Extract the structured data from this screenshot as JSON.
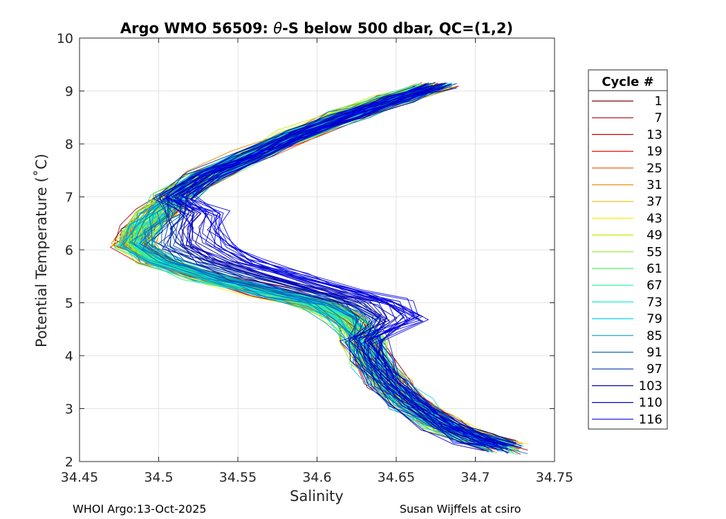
{
  "chart_data": {
    "type": "line",
    "title": {
      "prefix": "Argo WMO 56509: ",
      "theta": "θ",
      "suffix": "-S below 500 dbar,  QC=(1,2)"
    },
    "xlabel": "Salinity",
    "ylabel": "Potential Temperature (˚C)",
    "xlim": [
      34.45,
      34.75
    ],
    "ylim": [
      2,
      10
    ],
    "xticks": [
      34.45,
      34.5,
      34.55,
      34.6,
      34.65,
      34.7,
      34.75
    ],
    "xtick_labels": [
      "34.45",
      "34.5",
      "34.55",
      "34.6",
      "34.65",
      "34.7",
      "34.75"
    ],
    "yticks": [
      2,
      3,
      4,
      5,
      6,
      7,
      8,
      9,
      10
    ],
    "ytick_labels": [
      "2",
      "3",
      "4",
      "5",
      "6",
      "7",
      "8",
      "9",
      "10"
    ],
    "grid": true,
    "colormap": "jet",
    "legend": {
      "title": "Cycle #",
      "position": "outside-right",
      "entries": [
        {
          "label": "1",
          "color": "#800000"
        },
        {
          "label": "7",
          "color": "#A40000"
        },
        {
          "label": "13",
          "color": "#CC0000"
        },
        {
          "label": "19",
          "color": "#E61500"
        },
        {
          "label": "25",
          "color": "#E94F00"
        },
        {
          "label": "31",
          "color": "#E98A00"
        },
        {
          "label": "37",
          "color": "#EDBE00"
        },
        {
          "label": "43",
          "color": "#F2F000"
        },
        {
          "label": "49",
          "color": "#BFF000"
        },
        {
          "label": "55",
          "color": "#86EE20"
        },
        {
          "label": "61",
          "color": "#4CEE5E"
        },
        {
          "label": "67",
          "color": "#22EE9A"
        },
        {
          "label": "73",
          "color": "#16EED2"
        },
        {
          "label": "79",
          "color": "#16D4F0"
        },
        {
          "label": "85",
          "color": "#0099CC"
        },
        {
          "label": "91",
          "color": "#0066BB"
        },
        {
          "label": "97",
          "color": "#0033AA"
        },
        {
          "label": "103",
          "color": "#0000A0"
        },
        {
          "label": "110",
          "color": "#0000C8"
        },
        {
          "label": "116",
          "color": "#0000E6"
        }
      ]
    },
    "template_profile": [
      [
        34.718,
        2.28
      ],
      [
        34.7,
        2.45
      ],
      [
        34.68,
        2.7
      ],
      [
        34.66,
        3.1
      ],
      [
        34.645,
        3.5
      ],
      [
        34.635,
        3.9
      ],
      [
        34.63,
        4.3
      ],
      [
        34.62,
        4.7
      ],
      [
        34.6,
        5.0
      ],
      [
        34.57,
        5.2
      ],
      [
        34.53,
        5.5
      ],
      [
        34.5,
        5.8
      ],
      [
        34.485,
        6.1
      ],
      [
        34.49,
        6.4
      ],
      [
        34.5,
        6.7
      ],
      [
        34.51,
        7.0
      ],
      [
        34.53,
        7.4
      ],
      [
        34.56,
        7.8
      ],
      [
        34.59,
        8.2
      ],
      [
        34.62,
        8.55
      ],
      [
        34.65,
        8.85
      ],
      [
        34.675,
        9.1
      ]
    ],
    "salinity_noise": 0.02,
    "temperature_noise": 0.18,
    "profiles_per_cycle": 9,
    "profile_curve_seeds": [
      1,
      7,
      13,
      19,
      25,
      31,
      37,
      43,
      49,
      55,
      61,
      67,
      73,
      79,
      85,
      91,
      97,
      103,
      110,
      116
    ]
  },
  "footer": {
    "left": "WHOI Argo:13-Oct-2025",
    "right": "Susan Wijffels at csiro"
  }
}
